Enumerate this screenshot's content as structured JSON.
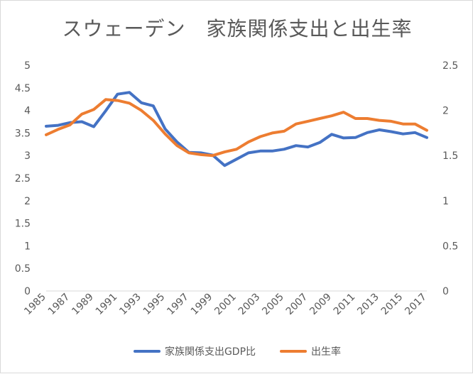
{
  "chart_data": {
    "type": "line",
    "title": "スウェーデン　家族関係支出と出生率",
    "x": [
      1985,
      1986,
      1987,
      1988,
      1989,
      1990,
      1991,
      1992,
      1993,
      1994,
      1995,
      1996,
      1997,
      1998,
      1999,
      2000,
      2001,
      2002,
      2003,
      2004,
      2005,
      2006,
      2007,
      2008,
      2009,
      2010,
      2011,
      2012,
      2013,
      2014,
      2015,
      2016,
      2017
    ],
    "x_tick_labels": [
      "1985",
      "1987",
      "1989",
      "1991",
      "1993",
      "1995",
      "1997",
      "1999",
      "2001",
      "2003",
      "2005",
      "2007",
      "2009",
      "2011",
      "2013",
      "2015",
      "2017"
    ],
    "y_left_ticks": [
      "0",
      "0.5",
      "1",
      "1.5",
      "2",
      "2.5",
      "3",
      "3.5",
      "4",
      "4.5",
      "5"
    ],
    "y_right_ticks": [
      "0",
      "0.5",
      "1",
      "1.5",
      "2",
      "2.5"
    ],
    "ylim_left": [
      0,
      5
    ],
    "ylim_right": [
      0,
      2.5
    ],
    "grid": false,
    "legend_position": "bottom",
    "series": [
      {
        "name": "家族関係支出GDP比",
        "axis": "left",
        "color": "#4472C4",
        "values": [
          3.65,
          3.67,
          3.73,
          3.75,
          3.64,
          3.99,
          4.36,
          4.4,
          4.17,
          4.1,
          3.59,
          3.3,
          3.07,
          3.06,
          3.01,
          2.78,
          2.92,
          3.06,
          3.1,
          3.1,
          3.14,
          3.22,
          3.19,
          3.29,
          3.47,
          3.39,
          3.4,
          3.51,
          3.57,
          3.53,
          3.48,
          3.51,
          3.4
        ]
      },
      {
        "name": "出生率",
        "axis": "right",
        "color": "#ED7D31",
        "values": [
          1.73,
          1.79,
          1.84,
          1.96,
          2.01,
          2.12,
          2.11,
          2.08,
          2.0,
          1.89,
          1.74,
          1.61,
          1.53,
          1.51,
          1.5,
          1.54,
          1.57,
          1.65,
          1.71,
          1.75,
          1.77,
          1.85,
          1.88,
          1.91,
          1.94,
          1.98,
          1.91,
          1.91,
          1.89,
          1.88,
          1.85,
          1.85,
          1.78
        ]
      }
    ]
  }
}
